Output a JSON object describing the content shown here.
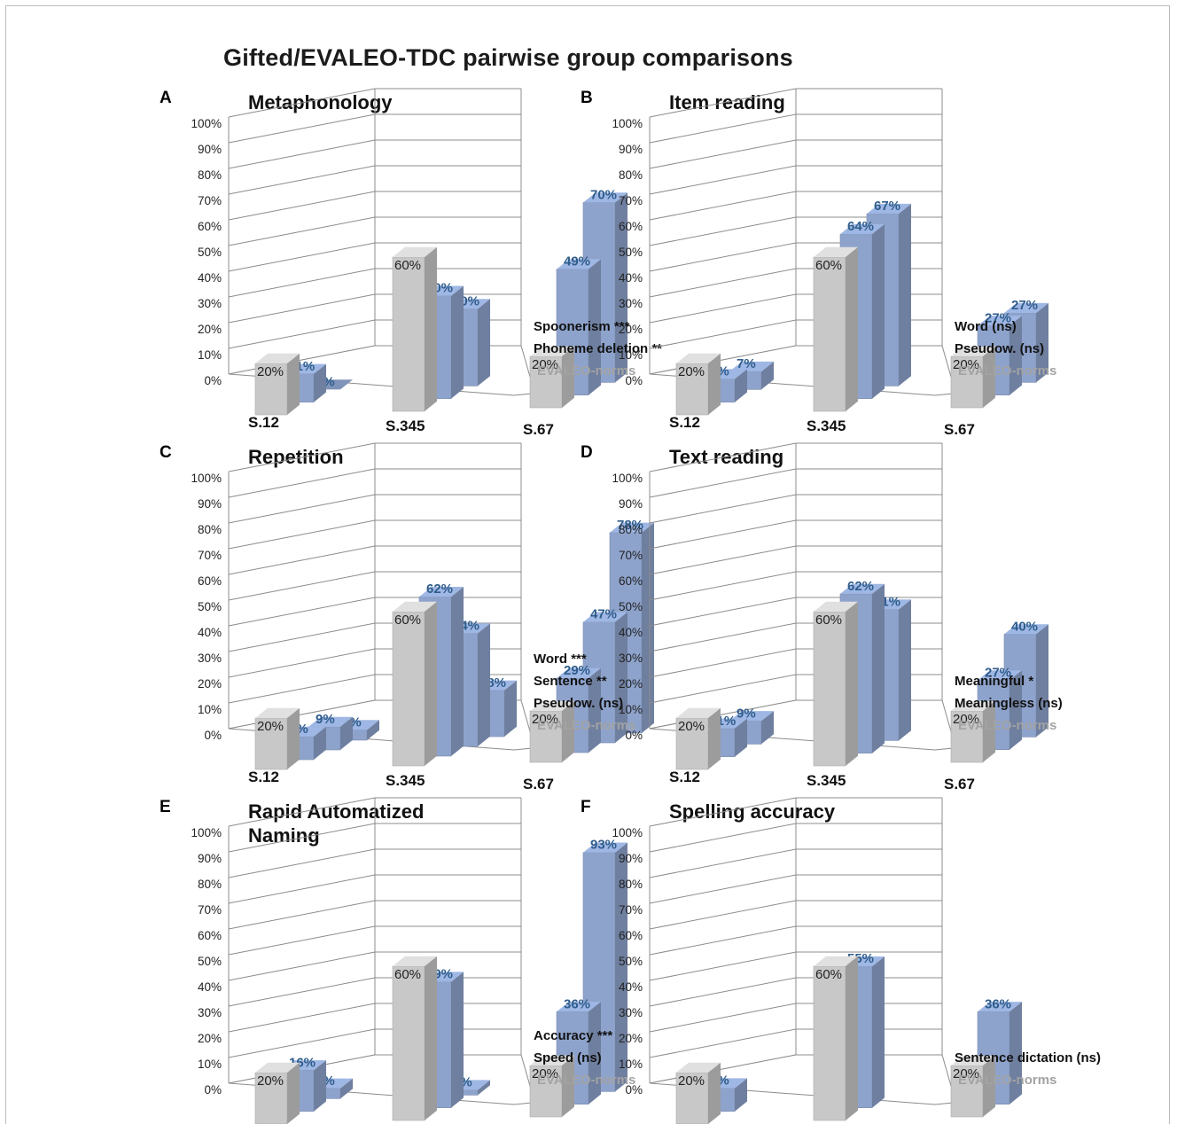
{
  "figure_title": "Gifted/EVALEO-TDC pairwise group comparisons",
  "colors": {
    "norm": "#c8c8c8",
    "gifted": "#8ea3cc",
    "grid": "#8c8c8c",
    "blue_text": "#2f5d8c",
    "grey_text": "#a3a3a3"
  },
  "chart_data": [
    {
      "letter": "A",
      "title": "Metaphonology",
      "type": "bar",
      "categories": [
        "S.12",
        "S.345",
        "S.67"
      ],
      "ylim": [
        0,
        100
      ],
      "yticks": [
        "0%",
        "10%",
        "20%",
        "30%",
        "40%",
        "50%",
        "60%",
        "70%",
        "80%",
        "90%",
        "100%"
      ],
      "series": [
        {
          "name": "EVALEO-norms",
          "role": "norm",
          "values": [
            20,
            60,
            20
          ],
          "labels": [
            "20%",
            "60%",
            "20%"
          ]
        },
        {
          "name": "Phoneme deletion **",
          "role": "gifted",
          "values": [
            11,
            40,
            49
          ],
          "labels": [
            "11%",
            "40%",
            "49%"
          ]
        },
        {
          "name": "Spoonerism ***",
          "role": "gifted",
          "values": [
            0,
            30,
            70
          ],
          "labels": [
            "0%",
            "30%",
            "70%"
          ]
        }
      ],
      "legend": [
        "Spoonerism ***",
        "Phoneme deletion **",
        "EVALEO-norms"
      ]
    },
    {
      "letter": "B",
      "title": "Item reading",
      "type": "bar",
      "categories": [
        "S.12",
        "S.345",
        "S.67"
      ],
      "ylim": [
        0,
        100
      ],
      "yticks": [
        "0%",
        "10%",
        "20%",
        "30%",
        "40%",
        "50%",
        "60%",
        "70%",
        "80%",
        "90%",
        "100%"
      ],
      "series": [
        {
          "name": "EVALEO-norms",
          "role": "norm",
          "values": [
            20,
            60,
            20
          ],
          "labels": [
            "20%",
            "60%",
            "20%"
          ]
        },
        {
          "name": "Pseudow. (ns)",
          "role": "gifted",
          "values": [
            9,
            64,
            27
          ],
          "labels": [
            "9%",
            "64%",
            "27%"
          ]
        },
        {
          "name": "Word (ns)",
          "role": "gifted",
          "values": [
            7,
            67,
            27
          ],
          "labels": [
            "7%",
            "67%",
            "27%"
          ]
        }
      ],
      "legend": [
        "Word (ns)",
        "Pseudow. (ns)",
        "EVALEO-norms"
      ]
    },
    {
      "letter": "C",
      "title": "Repetition",
      "type": "bar",
      "categories": [
        "S.12",
        "S.345",
        "S.67"
      ],
      "ylim": [
        0,
        100
      ],
      "yticks": [
        "0%",
        "10%",
        "20%",
        "30%",
        "40%",
        "50%",
        "60%",
        "70%",
        "80%",
        "90%",
        "100%"
      ],
      "series": [
        {
          "name": "EVALEO-norms",
          "role": "norm",
          "values": [
            20,
            60,
            20
          ],
          "labels": [
            "20%",
            "60%",
            "20%"
          ]
        },
        {
          "name": "Pseudow. (ns)",
          "role": "gifted",
          "values": [
            9,
            62,
            29
          ],
          "labels": [
            "9%",
            "62%",
            "29%"
          ]
        },
        {
          "name": "Sentence **",
          "role": "gifted",
          "values": [
            9,
            44,
            47
          ],
          "labels": [
            "9%",
            "44%",
            "47%"
          ]
        },
        {
          "name": "Word ***",
          "role": "gifted",
          "values": [
            4,
            18,
            78
          ],
          "labels": [
            "4%",
            "18%",
            "78%"
          ]
        }
      ],
      "legend": [
        "Word ***",
        "Sentence **",
        "Pseudow. (ns)",
        "EVALEO-norms"
      ]
    },
    {
      "letter": "D",
      "title": "Text reading",
      "type": "bar",
      "categories": [
        "S.12",
        "S.345",
        "S.67"
      ],
      "ylim": [
        0,
        100
      ],
      "yticks": [
        "0%",
        "10%",
        "20%",
        "30%",
        "40%",
        "50%",
        "60%",
        "70%",
        "80%",
        "90%",
        "100%"
      ],
      "series": [
        {
          "name": "EVALEO-norms",
          "role": "norm",
          "values": [
            20,
            60,
            20
          ],
          "labels": [
            "20%",
            "60%",
            "20%"
          ]
        },
        {
          "name": "Meaningless (ns)",
          "role": "gifted",
          "values": [
            11,
            62,
            27
          ],
          "labels": [
            "11%",
            "62%",
            "27%"
          ]
        },
        {
          "name": "Meaningful *",
          "role": "gifted",
          "values": [
            9,
            51,
            40
          ],
          "labels": [
            "9%",
            "51%",
            "40%"
          ]
        }
      ],
      "legend": [
        "Meaningful *",
        "Meaningless (ns)",
        "EVALEO-norms"
      ]
    },
    {
      "letter": "E",
      "title": "Rapid Automatized Naming",
      "type": "bar",
      "categories": [
        "S.12",
        "S.345",
        "S.67"
      ],
      "ylim": [
        0,
        100
      ],
      "yticks": [
        "0%",
        "10%",
        "20%",
        "30%",
        "40%",
        "50%",
        "60%",
        "70%",
        "80%",
        "90%",
        "100%"
      ],
      "series": [
        {
          "name": "EVALEO-norms",
          "role": "norm",
          "values": [
            20,
            60,
            20
          ],
          "labels": [
            "20%",
            "60%",
            "20%"
          ]
        },
        {
          "name": "Speed (ns)",
          "role": "gifted",
          "values": [
            16,
            49,
            36
          ],
          "labels": [
            "16%",
            "49%",
            "36%"
          ]
        },
        {
          "name": "Accuracy ***",
          "role": "gifted",
          "values": [
            4,
            2,
            93
          ],
          "labels": [
            "4%",
            "2%",
            "93%"
          ]
        }
      ],
      "legend": [
        "Accuracy ***",
        "Speed (ns)",
        "EVALEO-norms"
      ]
    },
    {
      "letter": "F",
      "title": "Spelling accuracy",
      "type": "bar",
      "categories": [
        "S.12",
        "S.345",
        "S.67"
      ],
      "ylim": [
        0,
        100
      ],
      "yticks": [
        "0%",
        "10%",
        "20%",
        "30%",
        "40%",
        "50%",
        "60%",
        "70%",
        "80%",
        "90%",
        "100%"
      ],
      "series": [
        {
          "name": "EVALEO-norms",
          "role": "norm",
          "values": [
            20,
            60,
            20
          ],
          "labels": [
            "20%",
            "60%",
            "20%"
          ]
        },
        {
          "name": "Sentence dictation (ns)",
          "role": "gifted",
          "values": [
            9,
            55,
            36
          ],
          "labels": [
            "9%",
            "55%",
            "36%"
          ]
        }
      ],
      "legend": [
        "Sentence dictation (ns)",
        "EVALEO-norms"
      ]
    }
  ]
}
